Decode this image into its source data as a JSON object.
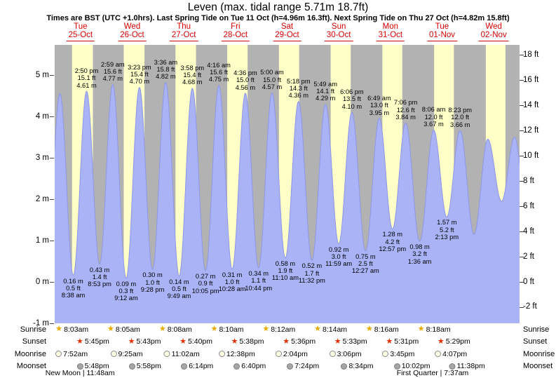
{
  "title": "Leven (max. tidal range 5.71m 18.7ft)",
  "subtitle": "Times are BST (UTC +1.0hrs). Last Spring Tide on Tue 11 Oct (h=4.96m 16.3ft). Next Spring Tide on Thu 27 Oct (h=4.82m 15.8ft)",
  "colors": {
    "day_band": "#ffffc8",
    "night_band": "#b2b2b2",
    "tide_fill": "#a9b3f6",
    "tide_stroke": "#8d97e8",
    "day_label_red": "#d40000",
    "sunrise_star": "#e8a800",
    "sunset_star": "#e03000",
    "moonrise_circle": "#ffffe6",
    "moonset_circle": "#a6a6a6"
  },
  "chart_data": {
    "type": "area",
    "title": "Leven (max. tidal range 5.71m 18.7ft)",
    "timezone_note": "Times are BST (UTC +1.0hrs)",
    "y_axis_left": {
      "unit": "m",
      "tick_labels": [
        "5 m",
        "4 m",
        "3 m",
        "2 m",
        "1 m",
        "0 m",
        "-1 m"
      ],
      "tick_values": [
        5,
        4,
        3,
        2,
        1,
        0,
        -1
      ],
      "range": [
        -1.0,
        5.73
      ]
    },
    "y_axis_right": {
      "unit": "ft",
      "tick_labels": [
        "18 ft",
        "16 ft",
        "14 ft",
        "12 ft",
        "10 ft",
        "8 ft",
        "6 ft",
        "4 ft",
        "2 ft",
        "0 ft",
        "-2 ft"
      ],
      "tick_values": [
        18,
        16,
        14,
        12,
        10,
        8,
        6,
        4,
        2,
        0,
        -2
      ]
    },
    "days": [
      {
        "weekday": "Tue",
        "date": "25-Oct"
      },
      {
        "weekday": "Wed",
        "date": "26-Oct"
      },
      {
        "weekday": "Thu",
        "date": "27-Oct"
      },
      {
        "weekday": "Fri",
        "date": "28-Oct"
      },
      {
        "weekday": "Sat",
        "date": "29-Oct"
      },
      {
        "weekday": "Sun",
        "date": "30-Oct"
      },
      {
        "weekday": "Mon",
        "date": "31-Oct"
      },
      {
        "weekday": "Tue",
        "date": "01-Nov"
      },
      {
        "weekday": "Wed",
        "date": "02-Nov"
      }
    ],
    "tide_events": [
      {
        "day": 0,
        "type": "low",
        "time": "8:38 am",
        "m": "0.16 m",
        "ft": "0.5 ft",
        "height_m": 0.16
      },
      {
        "day": 0,
        "type": "high",
        "time": "2:50 pm",
        "m": "4.61 m",
        "ft": "15.1 ft",
        "height_m": 4.61
      },
      {
        "day": 0,
        "type": "low",
        "time": "8:53 pm",
        "m": "0.43 m",
        "ft": "1.4 ft",
        "height_m": 0.43
      },
      {
        "day": 1,
        "type": "high",
        "time": "2:59 am",
        "m": "4.77 m",
        "ft": "15.6 ft",
        "height_m": 4.77
      },
      {
        "day": 1,
        "type": "low",
        "time": "9:12 am",
        "m": "0.09 m",
        "ft": "0.3 ft",
        "height_m": 0.09
      },
      {
        "day": 1,
        "type": "high",
        "time": "3:23 pm",
        "m": "4.70 m",
        "ft": "15.4 ft",
        "height_m": 4.7
      },
      {
        "day": 1,
        "type": "low",
        "time": "9:28 pm",
        "m": "0.30 m",
        "ft": "1.0 ft",
        "height_m": 0.3
      },
      {
        "day": 2,
        "type": "high",
        "time": "3:36 am",
        "m": "4.82 m",
        "ft": "15.8 ft",
        "height_m": 4.82
      },
      {
        "day": 2,
        "type": "low",
        "time": "9:49 am",
        "m": "0.14 m",
        "ft": "0.5 ft",
        "height_m": 0.14
      },
      {
        "day": 2,
        "type": "high",
        "time": "3:58 pm",
        "m": "4.68 m",
        "ft": "15.4 ft",
        "height_m": 4.68
      },
      {
        "day": 2,
        "type": "low",
        "time": "10:05 pm",
        "m": "0.27 m",
        "ft": "0.9 ft",
        "height_m": 0.27
      },
      {
        "day": 3,
        "type": "high",
        "time": "4:16 am",
        "m": "4.75 m",
        "ft": "15.6 ft",
        "height_m": 4.75
      },
      {
        "day": 3,
        "type": "low",
        "time": "10:28 am",
        "m": "0.31 m",
        "ft": "1.0 ft",
        "height_m": 0.31
      },
      {
        "day": 3,
        "type": "high",
        "time": "4:36 pm",
        "m": "4.56 m",
        "ft": "15.0 ft",
        "height_m": 4.56
      },
      {
        "day": 3,
        "type": "low",
        "time": "10:44 pm",
        "m": "0.34 m",
        "ft": "1.1 ft",
        "height_m": 0.34
      },
      {
        "day": 4,
        "type": "high",
        "time": "5:00 am",
        "m": "4.57 m",
        "ft": "15.0 ft",
        "height_m": 4.57
      },
      {
        "day": 4,
        "type": "low",
        "time": "11:10 am",
        "m": "0.58 m",
        "ft": "1.9 ft",
        "height_m": 0.58
      },
      {
        "day": 4,
        "type": "high",
        "time": "5:18 pm",
        "m": "4.36 m",
        "ft": "14.3 ft",
        "height_m": 4.36
      },
      {
        "day": 4,
        "type": "low",
        "time": "11:32 pm",
        "m": "0.52 m",
        "ft": "1.7 ft",
        "height_m": 0.52
      },
      {
        "day": 5,
        "type": "high",
        "time": "5:49 am",
        "m": "4.29 m",
        "ft": "14.1 ft",
        "height_m": 4.29
      },
      {
        "day": 5,
        "type": "low",
        "time": "11:59 am",
        "m": "0.92 m",
        "ft": "3.0 ft",
        "height_m": 0.92
      },
      {
        "day": 5,
        "type": "high",
        "time": "6:06 pm",
        "m": "4.10 m",
        "ft": "13.5 ft",
        "height_m": 4.1
      },
      {
        "day": 6,
        "type": "low",
        "time": "12:27 am",
        "m": "0.75 m",
        "ft": "2.5 ft",
        "height_m": 0.75
      },
      {
        "day": 6,
        "type": "high",
        "time": "6:49 am",
        "m": "3.95 m",
        "ft": "13.0 ft",
        "height_m": 3.95
      },
      {
        "day": 6,
        "type": "low",
        "time": "12:57 pm",
        "m": "1.28 m",
        "ft": "4.2 ft",
        "height_m": 1.28
      },
      {
        "day": 6,
        "type": "high",
        "time": "7:06 pm",
        "m": "3.84 m",
        "ft": "12.6 ft",
        "height_m": 3.84
      },
      {
        "day": 7,
        "type": "low",
        "time": "1:36 am",
        "m": "0.98 m",
        "ft": "3.2 ft",
        "height_m": 0.98
      },
      {
        "day": 7,
        "type": "high",
        "time": "8:06 am",
        "m": "3.67 m",
        "ft": "12.0 ft",
        "height_m": 3.67
      },
      {
        "day": 7,
        "type": "low",
        "time": "2:13 pm",
        "m": "1.57 m",
        "ft": "5.2 ft",
        "height_m": 1.57
      },
      {
        "day": 7,
        "type": "high",
        "time": "8:23 pm",
        "m": "3.66 m",
        "ft": "12.0 ft",
        "height_m": 3.66
      }
    ],
    "unlabeled_curve_extremes": [
      {
        "day": 0,
        "hour": -3.8,
        "height_m": 0.4
      },
      {
        "day": 0,
        "hour": 2.43,
        "height_m": 4.55
      },
      {
        "day": 8,
        "hour": 2.85,
        "height_m": 1.15
      },
      {
        "day": 8,
        "hour": 9.25,
        "height_m": 3.45
      },
      {
        "day": 8,
        "hour": 15.65,
        "height_m": 1.95
      },
      {
        "day": 8,
        "hour": 21.7,
        "height_m": 3.5
      },
      {
        "day": 9,
        "hour": 4.0,
        "height_m": 1.3
      }
    ]
  },
  "almanac": {
    "rows": [
      {
        "label": "Sunrise",
        "icon": "sunrise-star-icon",
        "times": [
          "8:03am",
          "8:05am",
          "8:08am",
          "8:10am",
          "8:12am",
          "8:14am",
          "8:16am",
          "8:18am"
        ]
      },
      {
        "label": "Sunset",
        "icon": "sunset-star-icon",
        "times": [
          "5:45pm",
          "5:43pm",
          "5:40pm",
          "5:38pm",
          "5:36pm",
          "5:33pm",
          "5:31pm",
          "5:29pm"
        ]
      },
      {
        "label": "Moonrise",
        "icon": "moonrise-circle-icon",
        "times": [
          "7:52am",
          "9:25am",
          "11:02am",
          "12:38pm",
          "2:04pm",
          "3:06pm",
          "3:45pm",
          "4:07pm"
        ]
      },
      {
        "label": "Moonset",
        "icon": "moonset-circle-icon",
        "times": [
          "5:48pm",
          "5:58pm",
          "6:14pm",
          "6:40pm",
          "7:24pm",
          "8:34pm",
          "10:02pm",
          "11:38pm"
        ]
      }
    ],
    "phases": [
      {
        "text": "New Moon | 11:48am",
        "day": 0,
        "time": "11:48am"
      },
      {
        "text": "First Quarter | 7:37am",
        "day": 7,
        "time": "7:37am"
      }
    ]
  }
}
